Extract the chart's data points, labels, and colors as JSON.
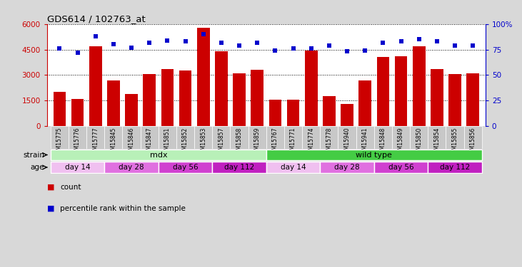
{
  "title": "GDS614 / 102763_at",
  "samples": [
    "GSM15775",
    "GSM15776",
    "GSM15777",
    "GSM15845",
    "GSM15846",
    "GSM15847",
    "GSM15851",
    "GSM15852",
    "GSM15853",
    "GSM15857",
    "GSM15858",
    "GSM15859",
    "GSM15767",
    "GSM15771",
    "GSM15774",
    "GSM15778",
    "GSM15940",
    "GSM15941",
    "GSM15848",
    "GSM15849",
    "GSM15850",
    "GSM15854",
    "GSM15855",
    "GSM15856"
  ],
  "counts": [
    2000,
    1600,
    4700,
    2700,
    1900,
    3050,
    3350,
    3250,
    5800,
    4400,
    3100,
    3300,
    1550,
    1550,
    4450,
    1750,
    1300,
    2700,
    4050,
    4100,
    4700,
    3350,
    3050,
    3100
  ],
  "percentiles": [
    76,
    72,
    88,
    80,
    77,
    82,
    84,
    83,
    90,
    82,
    79,
    82,
    74,
    76,
    76,
    79,
    73,
    74,
    82,
    83,
    85,
    83,
    79,
    79
  ],
  "bar_color": "#cc0000",
  "dot_color": "#0000cc",
  "ylim_left": [
    0,
    6000
  ],
  "ylim_right": [
    0,
    100
  ],
  "yticks_left": [
    0,
    1500,
    3000,
    4500,
    6000
  ],
  "yticks_right": [
    0,
    25,
    50,
    75,
    100
  ],
  "ytick_labels_left": [
    "0",
    "1500",
    "3000",
    "4500",
    "6000"
  ],
  "ytick_labels_right": [
    "0",
    "25",
    "50",
    "75",
    "100%"
  ],
  "strain_groups": [
    {
      "label": "mdx",
      "start": 0,
      "end": 12,
      "color": "#b8f0b8"
    },
    {
      "label": "wild type",
      "start": 12,
      "end": 24,
      "color": "#44cc44"
    }
  ],
  "age_groups": [
    {
      "label": "day 14",
      "start": 0,
      "end": 3,
      "color": "#f0c0f0"
    },
    {
      "label": "day 28",
      "start": 3,
      "end": 6,
      "color": "#e070e0"
    },
    {
      "label": "day 56",
      "start": 6,
      "end": 9,
      "color": "#d040d0"
    },
    {
      "label": "day 112",
      "start": 9,
      "end": 12,
      "color": "#c020c0"
    },
    {
      "label": "day 14",
      "start": 12,
      "end": 15,
      "color": "#f0c0f0"
    },
    {
      "label": "day 28",
      "start": 15,
      "end": 18,
      "color": "#e070e0"
    },
    {
      "label": "day 56",
      "start": 18,
      "end": 21,
      "color": "#d040d0"
    },
    {
      "label": "day 112",
      "start": 21,
      "end": 24,
      "color": "#c020c0"
    }
  ],
  "strain_label": "strain",
  "age_label": "age",
  "legend_count": "count",
  "legend_percentile": "percentile rank within the sample",
  "bg_color": "#d8d8d8",
  "plot_bg_color": "#ffffff",
  "xticklabel_bg": "#c8c8c8"
}
